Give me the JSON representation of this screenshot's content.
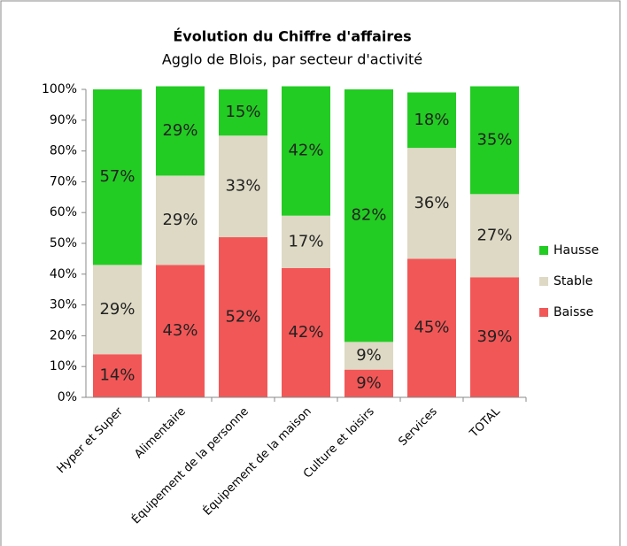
{
  "chart_data": {
    "type": "stacked_bar",
    "title": "Évolution du Chiffre d'affaires",
    "subtitle": "Agglo de Blois, par secteur d'activité",
    "categories": [
      "Hyper et Super",
      "Alimentaire",
      "Équipement de la personne",
      "Équipement de la maison",
      "Culture et loisirs",
      "Services",
      "TOTAL"
    ],
    "series": [
      {
        "name": "Baisse",
        "color": "#f25757",
        "values": [
          14,
          43,
          52,
          42,
          9,
          45,
          39
        ],
        "value_labels": [
          "14%",
          "43%",
          "52%",
          "42%",
          "9%",
          "45%",
          "39%"
        ]
      },
      {
        "name": "Stable",
        "color": "#ddd9c4",
        "values": [
          29,
          29,
          33,
          17,
          9,
          36,
          27
        ],
        "value_labels": [
          "29%",
          "29%",
          "33%",
          "17%",
          "9%",
          "36%",
          "27%"
        ]
      },
      {
        "name": "Hausse",
        "color": "#22cc22",
        "values": [
          57,
          29,
          15,
          42,
          82,
          18,
          35
        ],
        "value_labels": [
          "57%",
          "29%",
          "15%",
          "42%",
          "82%",
          "18%",
          "35%"
        ]
      }
    ],
    "ylim": [
      0,
      100
    ],
    "yticks": [
      {
        "value": 0,
        "label": "0%"
      },
      {
        "value": 10,
        "label": "10%"
      },
      {
        "value": 20,
        "label": "20%"
      },
      {
        "value": 30,
        "label": "30%"
      },
      {
        "value": 40,
        "label": "40%"
      },
      {
        "value": 50,
        "label": "50%"
      },
      {
        "value": 60,
        "label": "60%"
      },
      {
        "value": 70,
        "label": "70%"
      },
      {
        "value": 80,
        "label": "80%"
      },
      {
        "value": 90,
        "label": "90%"
      },
      {
        "value": 100,
        "label": "100%"
      }
    ],
    "legend": "right"
  }
}
